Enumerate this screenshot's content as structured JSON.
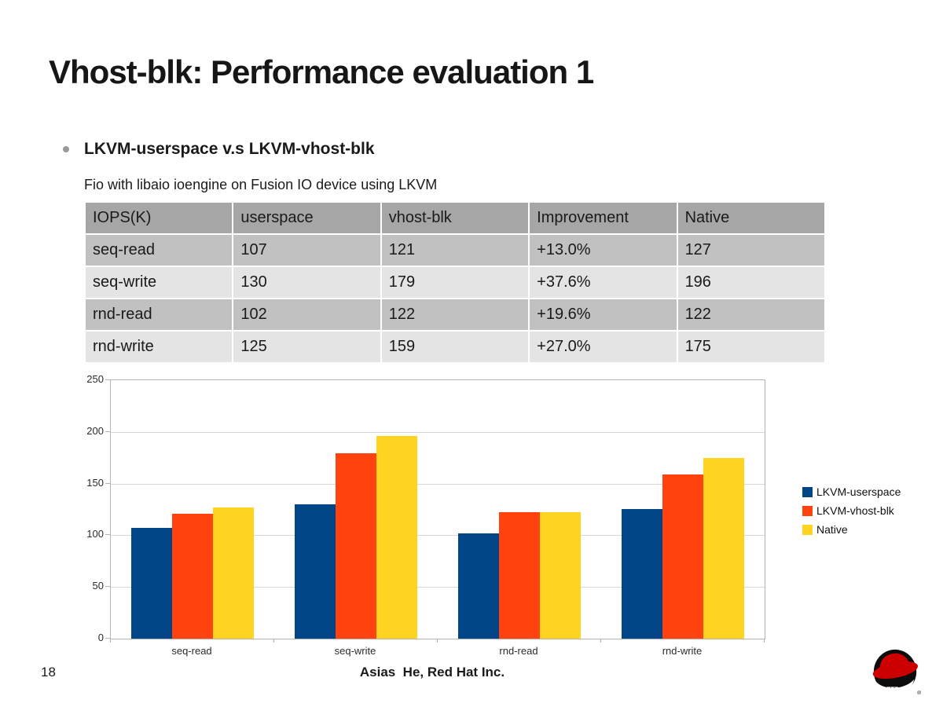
{
  "slide": {
    "title": "Vhost-blk: Performance evaluation 1",
    "bullet": "LKVM-userspace v.s LKVM-vhost-blk",
    "subtitle": "Fio with libaio ioengine on Fusion IO device using LKVM",
    "page_number": "18",
    "credit": "Asias  He, Red Hat Inc."
  },
  "table": {
    "columns": [
      "IOPS(K)",
      "userspace",
      "vhost-blk",
      "Improvement",
      "Native"
    ],
    "rows": [
      [
        "seq-read",
        "107",
        "121",
        "+13.0%",
        "127"
      ],
      [
        "seq-write",
        "130",
        "179",
        "+37.6%",
        "196"
      ],
      [
        "rnd-read",
        "102",
        "122",
        "+19.6%",
        "122"
      ],
      [
        "rnd-write",
        "125",
        "159",
        "+27.0%",
        "175"
      ]
    ]
  },
  "chart_data": {
    "type": "bar",
    "title": "",
    "xlabel": "",
    "ylabel": "",
    "categories": [
      "seq-read",
      "seq-write",
      "rnd-read",
      "rnd-write"
    ],
    "series": [
      {
        "name": "LKVM-userspace",
        "color": "#004586",
        "values": [
          107,
          130,
          102,
          125
        ]
      },
      {
        "name": "LKVM-vhost-blk",
        "color": "#ff420e",
        "values": [
          121,
          179,
          122,
          159
        ]
      },
      {
        "name": "Native",
        "color": "#ffd320",
        "values": [
          127,
          196,
          122,
          175
        ]
      }
    ],
    "ylim": [
      0,
      250
    ],
    "yticks": [
      0,
      50,
      100,
      150,
      200,
      250
    ],
    "grid": true,
    "legend_position": "right"
  },
  "colors": {
    "table_header_bg": "#a6a6a6",
    "table_row_dark_bg": "#c1c1c1",
    "table_row_light_bg": "#e4e4e4",
    "gridline": "#d6d6d6",
    "axis": "#b3b3b3",
    "redhat_red": "#cc0000",
    "logo_black": "#0c0c0c"
  },
  "icons": {
    "bullet": "bullet-dot-icon",
    "logo": "red-hat-shadowman-logo"
  }
}
